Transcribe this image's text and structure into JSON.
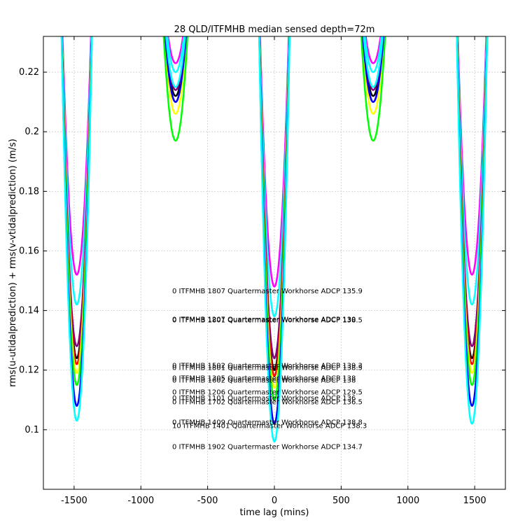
{
  "chart_data": {
    "type": "line",
    "title": "28 QLD/ITFMHB median sensed depth=72m",
    "xlabel": "time lag (mins)",
    "ylabel": "rms(u-utidalprediction) + rms(v-vtidalprediction) (m/s)",
    "xlim": [
      -1730,
      1730
    ],
    "ylim": [
      0.08,
      0.232
    ],
    "xticks": [
      -1500,
      -1000,
      -500,
      0,
      500,
      1000,
      1500
    ],
    "yticks": [
      0.1,
      0.12,
      0.14,
      0.16,
      0.18,
      0.2,
      0.22
    ],
    "xtick_labels": [
      "-1500",
      "-1000",
      "-500",
      "0",
      "500",
      "1000",
      "1500"
    ],
    "ytick_labels": [
      "0.1",
      "0.12",
      "0.14",
      "0.16",
      "0.18",
      "0.2",
      "0.22"
    ],
    "grid": true,
    "series": [
      {
        "color": "#ff00ff",
        "values": [
          0.152,
          0.223,
          0.148,
          0.223,
          0.152
        ]
      },
      {
        "color": "#00ffff",
        "values": [
          0.142,
          0.22,
          0.138,
          0.22,
          0.142
        ]
      },
      {
        "color": "#000000",
        "values": [
          0.124,
          0.212,
          0.12,
          0.212,
          0.124
        ]
      },
      {
        "color": "#800080",
        "values": [
          0.128,
          0.214,
          0.124,
          0.214,
          0.128
        ]
      },
      {
        "color": "#ff0000",
        "values": [
          0.122,
          0.21,
          0.118,
          0.21,
          0.122
        ]
      },
      {
        "color": "#ffff00",
        "values": [
          0.119,
          0.206,
          0.114,
          0.206,
          0.119
        ]
      },
      {
        "color": "#00ff00",
        "values": [
          0.115,
          0.197,
          0.11,
          0.197,
          0.115
        ]
      },
      {
        "color": "#0000ff",
        "values": [
          0.108,
          0.21,
          0.102,
          0.21,
          0.108
        ]
      },
      {
        "color": "#00ffff",
        "values": [
          0.103,
          0.215,
          0.096,
          0.215,
          0.102
        ]
      }
    ],
    "dip_centers": [
      -1480,
      -740,
      0,
      740,
      1480
    ],
    "annotations": [
      {
        "text": "0 ITFMHB 1807 Quartermaster Workhorse ADCP 135.9",
        "y": 0.1465
      },
      {
        "text": "0 ITFMHB 1207 Quartermaster Workhorse ADCP 130",
        "y": 0.137
      },
      {
        "text": "0 ITFMHB 1801 Quartermaster Workhorse ADCP 138.5",
        "y": 0.1367
      },
      {
        "text": "0 ITFMHB 1502 Quartermaster Workhorse ADCP 139.3",
        "y": 0.1215
      },
      {
        "text": "0 ITFMHB 1801 Quartermaster Workhorse ADCP 138.5",
        "y": 0.1208
      },
      {
        "text": "0 ITFMHB 1305 Quartermaster Workhorse ADCP 138",
        "y": 0.1172
      },
      {
        "text": "0 ITFMHB 1602 Quartermaster Workhorse ADCP 138",
        "y": 0.1165
      },
      {
        "text": "0 ITFMHB 1206 Quartermaster Workhorse ADCP 129.5",
        "y": 0.1125
      },
      {
        "text": "0 ITFMHB 1101 Quartermaster Workhorse ADCP 136",
        "y": 0.1105
      },
      {
        "text": "0 ITFMHB 1702 Quartermaster Workhorse ADCP 136.5",
        "y": 0.1092
      },
      {
        "text": "0 ITFMHB 1409 Quartermaster Workhorse ADCP 138.8",
        "y": 0.1024
      },
      {
        "text": "10 ITFMHB 1401 Quartermaster Workhorse ADCP 138.3",
        "y": 0.1013
      },
      {
        "text": "0 ITFMHB 1902 Quartermaster Workhorse ADCP 134.7",
        "y": 0.0942
      }
    ]
  }
}
